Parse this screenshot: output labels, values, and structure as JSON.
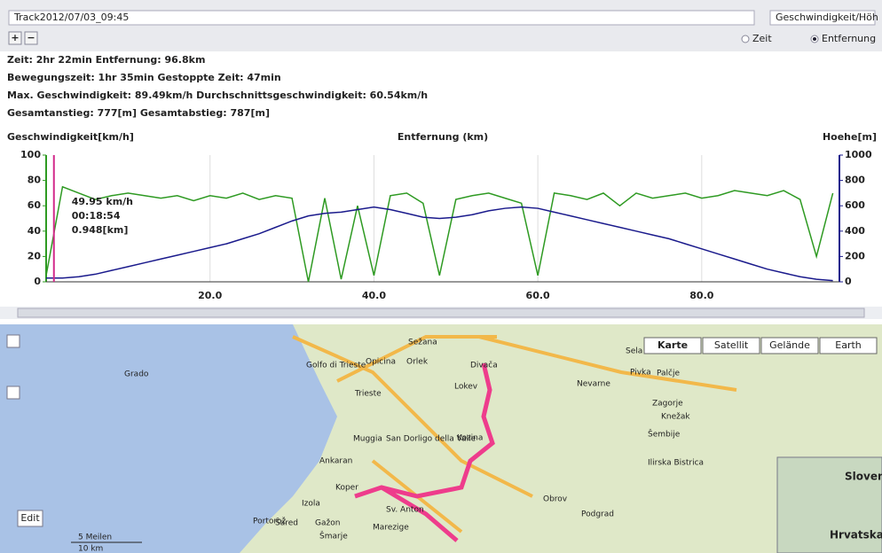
{
  "toolbar": {
    "track": "Track2012/07/03_09:45",
    "mode": "Geschwindigkeit/Höh",
    "zoom_in": "+",
    "zoom_out": "−",
    "radio_time": "Zeit",
    "radio_distance": "Entfernung"
  },
  "stats": [
    "Zeit: 2hr 22min  Entfernung: 96.8km",
    "Bewegungszeit: 1hr 35min  Gestoppte Zeit: 47min",
    "Max. Geschwindigkeit: 89.49km/h  Durchschnittsgeschwindigkeit: 60.54km/h",
    "Gesamtanstieg: 777[m]  Gesamtabstieg: 787[m]"
  ],
  "chart_data": {
    "type": "line",
    "y_label": "Geschwindigkeit[km/h]",
    "x_label": "Entfernung (km)",
    "y2_label": "Hoehe[m]",
    "x": [
      0,
      2,
      4,
      6,
      8,
      10,
      12,
      14,
      16,
      18,
      20,
      22,
      24,
      26,
      28,
      30,
      32,
      34,
      36,
      38,
      40,
      42,
      44,
      46,
      48,
      50,
      52,
      54,
      56,
      58,
      60,
      62,
      64,
      66,
      68,
      70,
      72,
      74,
      76,
      78,
      80,
      82,
      84,
      86,
      88,
      90,
      92,
      94,
      96
    ],
    "series": [
      {
        "name": "Geschwindigkeit",
        "color": "#2e9a22",
        "values": [
          5,
          75,
          70,
          65,
          68,
          70,
          68,
          66,
          68,
          64,
          68,
          66,
          70,
          65,
          68,
          66,
          0,
          66,
          2,
          60,
          5,
          68,
          70,
          62,
          5,
          65,
          68,
          70,
          66,
          62,
          5,
          70,
          68,
          65,
          70,
          60,
          70,
          66,
          68,
          70,
          66,
          68,
          72,
          70,
          68,
          72,
          65,
          20,
          70
        ]
      },
      {
        "name": "Hoehe",
        "color": "#1a1a8c",
        "axis": "y2",
        "values": [
          30,
          30,
          40,
          60,
          90,
          120,
          150,
          180,
          210,
          240,
          270,
          300,
          340,
          380,
          430,
          480,
          520,
          540,
          550,
          570,
          590,
          570,
          540,
          510,
          500,
          510,
          530,
          560,
          580,
          590,
          580,
          550,
          520,
          490,
          460,
          430,
          400,
          370,
          340,
          300,
          260,
          220,
          180,
          140,
          100,
          70,
          40,
          20,
          10
        ]
      }
    ],
    "xlim": [
      0,
      96.8
    ],
    "xticks": [
      {
        "value": 20,
        "label": "20.0"
      },
      {
        "value": 40,
        "label": "40.0"
      },
      {
        "value": 60,
        "label": "60.0"
      },
      {
        "value": 80,
        "label": "80.0"
      }
    ],
    "ylim": [
      0,
      100
    ],
    "yticks": [
      0,
      20,
      40,
      60,
      80,
      100
    ],
    "y2lim": [
      0,
      1000
    ],
    "y2ticks": [
      0,
      200,
      400,
      600,
      800,
      1000
    ],
    "tooltip": {
      "speed": "49.95 km/h",
      "time": "00:18:54",
      "distance": "0.948[km]",
      "x": 0.948
    }
  },
  "map": {
    "buttons": [
      "Karte",
      "Satellit",
      "Gelände",
      "Earth"
    ],
    "edit": "Edit",
    "scale_mi": "5 Meilen",
    "scale_km": "10 km",
    "places": [
      "Grado",
      "Golfo di Trieste",
      "Opicina",
      "Sežana",
      "Orlek",
      "Divača",
      "Lokev",
      "Trieste",
      "Nevarne",
      "Sela",
      "Pivka",
      "Palčje",
      "Zagorje",
      "Knežak",
      "Šembije",
      "Ilirska Bistrica",
      "Muggia",
      "San Dorligo della Valle",
      "Kozina",
      "Obrov",
      "Podgrad",
      "Ankaran",
      "Koper",
      "Izola",
      "Sv. Anton",
      "Marezige",
      "Portorož",
      "Šared",
      "Gažon",
      "Šmarje",
      "Slovenija",
      "Hrvatska"
    ]
  }
}
